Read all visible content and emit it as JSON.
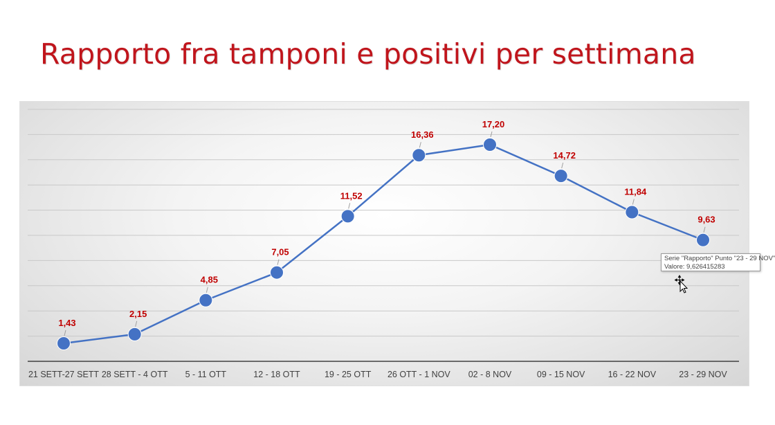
{
  "slide": {
    "title": "Rapporto fra tamponi e positivi per settimana"
  },
  "tooltip": {
    "line1": "Serie \"Rapporto\" Punto \"23 - 29 NOV\"",
    "line2": "Valore: 9,626415283"
  },
  "cursor": {
    "icon": "move-pointer-icon"
  },
  "chart_data": {
    "type": "line",
    "title": "",
    "xlabel": "",
    "ylabel": "",
    "categories": [
      "21 SETT-27 SETT",
      "28 SETT - 4 OTT",
      "5 - 11 OTT",
      "12 - 18 OTT",
      "19 - 25 OTT",
      "26 OTT - 1 NOV",
      "02 - 8 NOV",
      "09 - 15 NOV",
      "16 - 22 NOV",
      "23 - 29 NOV"
    ],
    "series": [
      {
        "name": "Rapporto",
        "values": [
          1.43,
          2.15,
          4.85,
          7.05,
          11.52,
          16.36,
          17.2,
          14.72,
          11.84,
          9.63
        ],
        "labels": [
          "1,43",
          "2,15",
          "4,85",
          "7,05",
          "11,52",
          "16,36",
          "17,20",
          "14,72",
          "11,84",
          "9,63"
        ],
        "color": "#4472c4"
      }
    ],
    "ylim": [
      0,
      20
    ],
    "y_gridlines": [
      2,
      4,
      6,
      8,
      10,
      12,
      14,
      16,
      18,
      20
    ],
    "grid": true,
    "legend": "none",
    "label_color": "#c00000",
    "tick_color": "#404040"
  }
}
